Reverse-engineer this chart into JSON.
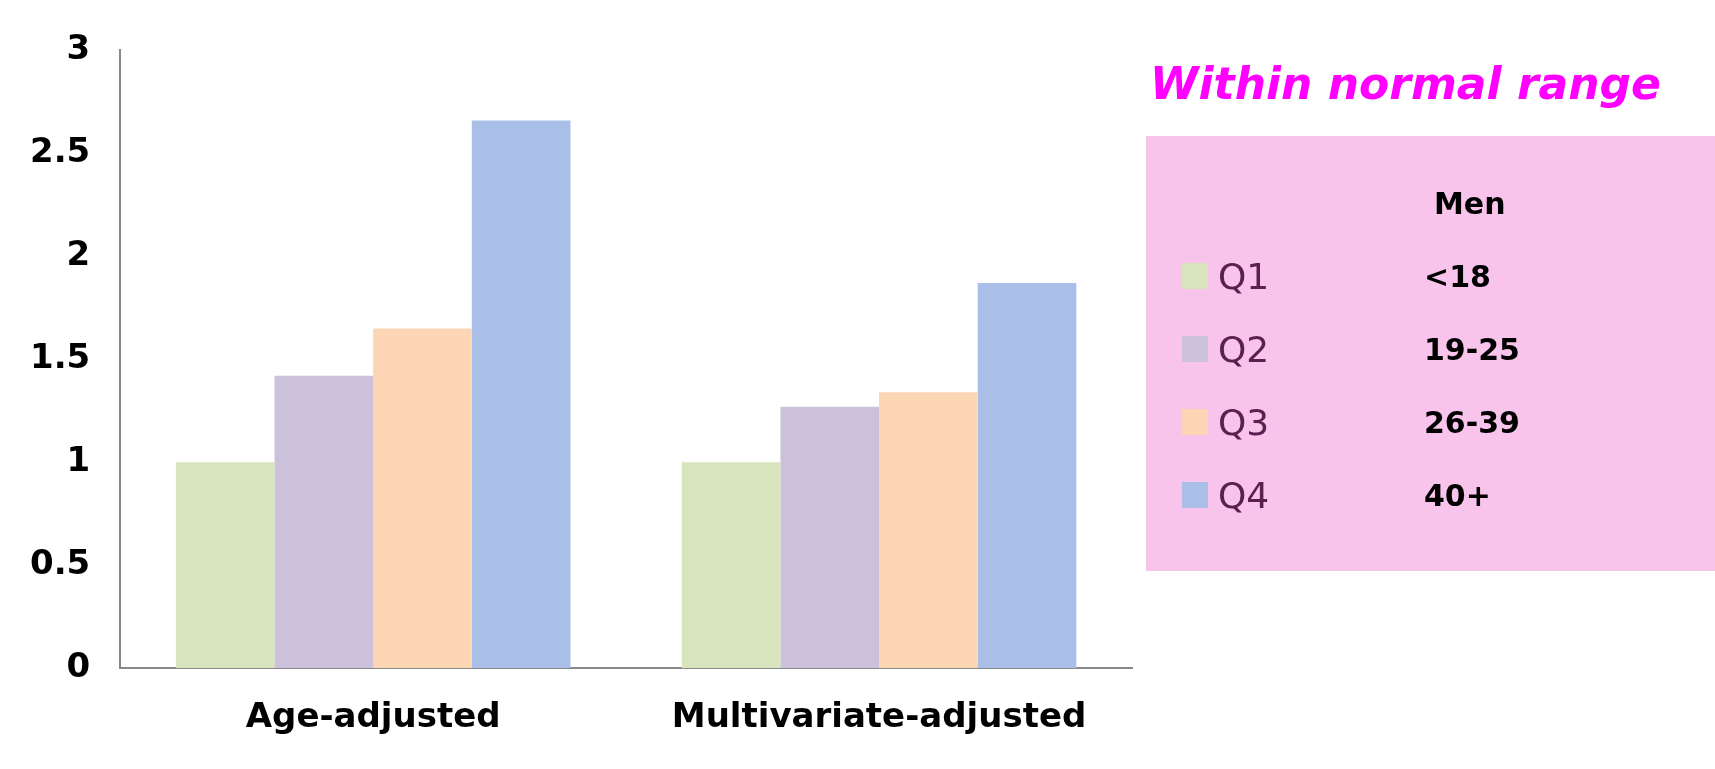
{
  "chart_data": {
    "type": "bar",
    "title": "Within normal range",
    "legend_title": "Men",
    "categories": [
      "Age-adjusted",
      "Multivariate-adjusted"
    ],
    "series": [
      {
        "name": "Q1",
        "color": "#d7e4bd",
        "values": [
          1.0,
          1.0
        ]
      },
      {
        "name": "Q2",
        "color": "#ccc1da",
        "values": [
          1.42,
          1.27
        ]
      },
      {
        "name": "Q3",
        "color": "#fcd5b5",
        "values": [
          1.65,
          1.34
        ]
      },
      {
        "name": "Q4",
        "color": "#a9bfe8",
        "values": [
          2.66,
          1.87
        ]
      }
    ],
    "annotations": [
      "<18",
      "19-25",
      "26-39",
      "40+"
    ],
    "ylim": [
      0,
      3
    ],
    "yticks": [
      0,
      0.5,
      1,
      1.5,
      2,
      2.5,
      3
    ],
    "grid": false,
    "legend": "right"
  }
}
